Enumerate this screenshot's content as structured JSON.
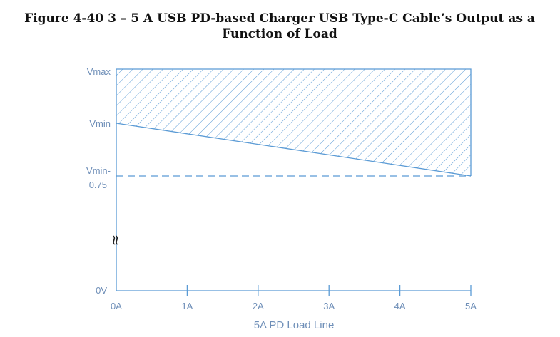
{
  "title": {
    "lines": [
      "Figure 4-40   3 – 5 A USB PD-based Charger USB Type-C Cable’s Output as a",
      "Function of Load"
    ]
  },
  "y_labels": {
    "vmax": "Vmax",
    "vmin": "Vmin",
    "vmin_minus": [
      "Vmin-",
      "0.75"
    ],
    "zero": "0V"
  },
  "x_labels": [
    "0A",
    "1A",
    "2A",
    "3A",
    "4A",
    "5A"
  ],
  "x_axis_label": "5A PD Load Line"
}
